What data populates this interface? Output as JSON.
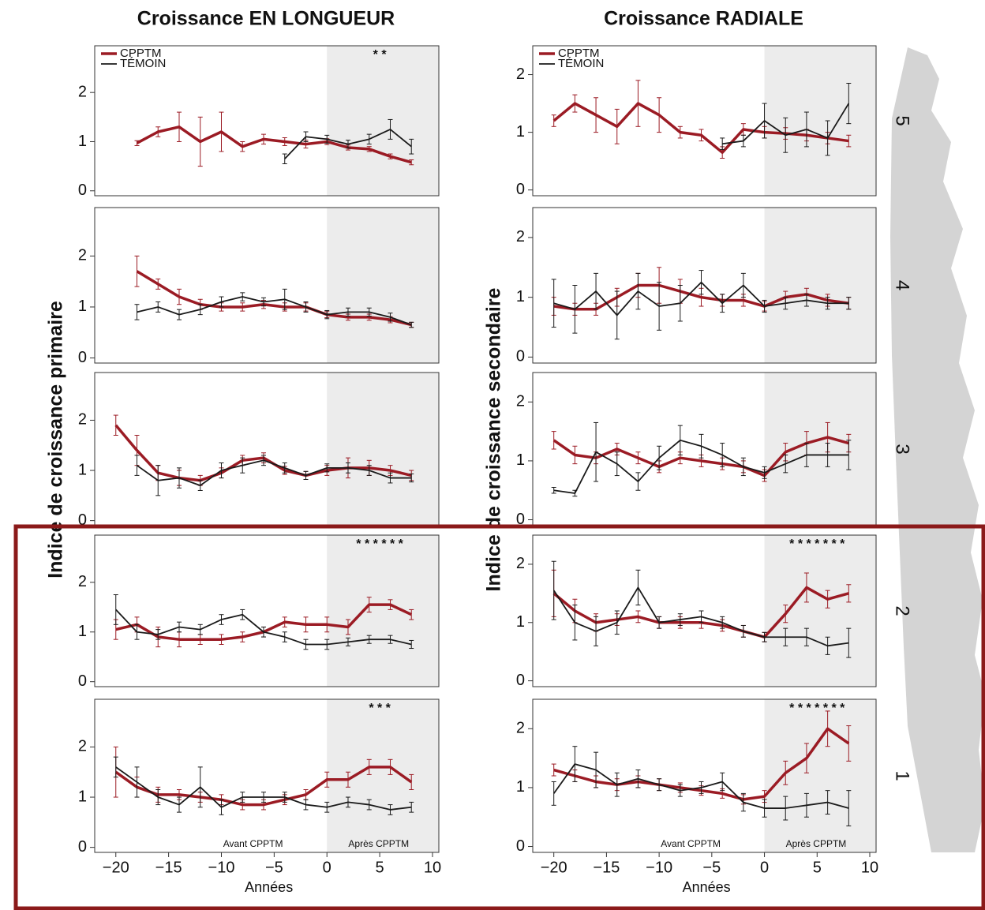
{
  "chart_data": [
    {
      "type": "line",
      "title": "Croissance EN LONGUEUR",
      "legend": true,
      "stars": "* *",
      "shade_from": 0,
      "x": [
        -20,
        -18,
        -16,
        -14,
        -12,
        -10,
        -8,
        -6,
        -4,
        -2,
        0,
        2,
        4,
        6,
        8
      ],
      "xlim": [
        -22,
        10.6
      ],
      "ylim": [
        -0.1,
        2.95
      ],
      "yticks": [
        0,
        1,
        2
      ],
      "series": [
        {
          "name": "CPPTM",
          "color": "#9b1b24",
          "values": [
            null,
            0.97,
            1.2,
            1.3,
            1.0,
            1.2,
            0.9,
            1.05,
            1.0,
            0.95,
            1.0,
            0.88,
            0.85,
            0.7,
            0.58
          ],
          "errors": [
            null,
            0.05,
            0.1,
            0.3,
            0.5,
            0.4,
            0.1,
            0.1,
            0.08,
            0.08,
            0.06,
            0.05,
            0.05,
            0.05,
            0.05
          ]
        },
        {
          "name": "TÉMOIN",
          "color": "#1a1a1a",
          "values": [
            null,
            null,
            null,
            null,
            null,
            null,
            null,
            null,
            0.65,
            1.1,
            1.05,
            0.95,
            1.05,
            1.25,
            0.9
          ],
          "errors": [
            null,
            null,
            null,
            null,
            null,
            null,
            null,
            null,
            0.1,
            0.1,
            0.08,
            0.08,
            0.1,
            0.2,
            0.15
          ]
        }
      ]
    },
    {
      "type": "line",
      "shade_from": 0,
      "x": [
        -20,
        -18,
        -16,
        -14,
        -12,
        -10,
        -8,
        -6,
        -4,
        -2,
        0,
        2,
        4,
        6,
        8
      ],
      "xlim": [
        -22,
        10.6
      ],
      "ylim": [
        -0.1,
        2.95
      ],
      "yticks": [
        0,
        1,
        2
      ],
      "series": [
        {
          "name": "CPPTM",
          "color": "#9b1b24",
          "values": [
            null,
            1.7,
            1.45,
            1.2,
            1.05,
            1.0,
            1.0,
            1.05,
            1.0,
            1.0,
            0.85,
            0.8,
            0.8,
            0.75,
            0.65
          ],
          "errors": [
            null,
            0.3,
            0.1,
            0.15,
            0.1,
            0.08,
            0.08,
            0.08,
            0.08,
            0.08,
            0.06,
            0.06,
            0.06,
            0.06,
            0.05
          ]
        },
        {
          "name": "TÉMOIN",
          "color": "#1a1a1a",
          "values": [
            null,
            0.9,
            1.0,
            0.85,
            0.95,
            1.1,
            1.2,
            1.1,
            1.15,
            1.0,
            0.85,
            0.9,
            0.9,
            0.8,
            0.65
          ],
          "errors": [
            null,
            0.15,
            0.1,
            0.1,
            0.1,
            0.1,
            0.08,
            0.08,
            0.2,
            0.1,
            0.08,
            0.08,
            0.08,
            0.08,
            0.05
          ]
        }
      ]
    },
    {
      "type": "line",
      "shade_from": 0,
      "ylabel": "Indice de croissance primaire",
      "x": [
        -20,
        -18,
        -16,
        -14,
        -12,
        -10,
        -8,
        -6,
        -4,
        -2,
        0,
        2,
        4,
        6,
        8
      ],
      "xlim": [
        -22,
        10.6
      ],
      "ylim": [
        -0.1,
        2.95
      ],
      "yticks": [
        0,
        1,
        2
      ],
      "series": [
        {
          "name": "CPPTM",
          "color": "#9b1b24",
          "values": [
            1.9,
            1.4,
            0.95,
            0.85,
            0.8,
            0.95,
            1.2,
            1.25,
            1.0,
            0.9,
            1.0,
            1.05,
            1.05,
            1.0,
            0.9
          ],
          "errors": [
            0.2,
            0.3,
            0.15,
            0.15,
            0.1,
            0.1,
            0.1,
            0.1,
            0.08,
            0.08,
            0.1,
            0.2,
            0.15,
            0.1,
            0.1
          ]
        },
        {
          "name": "TÉMOIN",
          "color": "#1a1a1a",
          "values": [
            null,
            1.1,
            0.8,
            0.85,
            0.7,
            1.0,
            1.1,
            1.2,
            1.05,
            0.9,
            1.05,
            1.05,
            1.0,
            0.85,
            0.85
          ],
          "errors": [
            null,
            0.2,
            0.3,
            0.2,
            0.1,
            0.15,
            0.15,
            0.1,
            0.1,
            0.08,
            0.08,
            0.1,
            0.1,
            0.1,
            0.08
          ]
        }
      ]
    },
    {
      "type": "line",
      "shade_from": 0,
      "stars": "* * * * * *",
      "x": [
        -20,
        -18,
        -16,
        -14,
        -12,
        -10,
        -8,
        -6,
        -4,
        -2,
        0,
        2,
        4,
        6,
        8
      ],
      "xlim": [
        -22,
        10.6
      ],
      "ylim": [
        -0.1,
        2.95
      ],
      "yticks": [
        0,
        1,
        2
      ],
      "series": [
        {
          "name": "CPPTM",
          "color": "#9b1b24",
          "values": [
            1.05,
            1.15,
            0.9,
            0.85,
            0.85,
            0.85,
            0.9,
            1.0,
            1.2,
            1.15,
            1.15,
            1.1,
            1.55,
            1.55,
            1.35
          ],
          "errors": [
            0.2,
            0.15,
            0.2,
            0.15,
            0.1,
            0.1,
            0.1,
            0.1,
            0.1,
            0.15,
            0.15,
            0.15,
            0.15,
            0.1,
            0.1
          ]
        },
        {
          "name": "TÉMOIN",
          "color": "#1a1a1a",
          "values": [
            1.45,
            1.0,
            0.95,
            1.1,
            1.05,
            1.25,
            1.35,
            1.0,
            0.9,
            0.75,
            0.75,
            0.8,
            0.85,
            0.85,
            0.75
          ],
          "errors": [
            0.3,
            0.15,
            0.1,
            0.1,
            0.1,
            0.1,
            0.1,
            0.1,
            0.1,
            0.1,
            0.1,
            0.08,
            0.08,
            0.08,
            0.08
          ]
        }
      ]
    },
    {
      "type": "line",
      "shade_from": 0,
      "stars": "*     * *",
      "xlabel": "Années",
      "annotations": [
        "Avant CPPTM",
        "Après CPPTM"
      ],
      "x": [
        -20,
        -18,
        -16,
        -14,
        -12,
        -10,
        -8,
        -6,
        -4,
        -2,
        0,
        2,
        4,
        6,
        8
      ],
      "xlim": [
        -22,
        10.6
      ],
      "ylim": [
        -0.1,
        2.95
      ],
      "yticks": [
        0,
        1,
        2
      ],
      "xticks": [
        {
          "value": -20,
          "label": "−20"
        },
        {
          "value": -15,
          "label": "−15"
        },
        {
          "value": -10,
          "label": "−10"
        },
        {
          "value": -5,
          "label": "−5"
        },
        0,
        5,
        10
      ],
      "series": [
        {
          "name": "CPPTM",
          "color": "#9b1b24",
          "values": [
            1.5,
            1.2,
            1.05,
            1.05,
            1.0,
            0.95,
            0.85,
            0.85,
            0.95,
            1.05,
            1.35,
            1.35,
            1.6,
            1.6,
            1.3
          ],
          "errors": [
            0.5,
            0.2,
            0.15,
            0.1,
            0.1,
            0.1,
            0.1,
            0.1,
            0.1,
            0.1,
            0.15,
            0.15,
            0.15,
            0.15,
            0.15
          ]
        },
        {
          "name": "TÉMOIN",
          "color": "#1a1a1a",
          "values": [
            1.6,
            1.3,
            1.0,
            0.85,
            1.2,
            0.8,
            1.0,
            1.0,
            1.0,
            0.85,
            0.8,
            0.9,
            0.85,
            0.75,
            0.8
          ],
          "errors": [
            0.2,
            0.3,
            0.15,
            0.15,
            0.4,
            0.15,
            0.1,
            0.1,
            0.1,
            0.1,
            0.1,
            0.1,
            0.1,
            0.1,
            0.1
          ]
        }
      ]
    },
    {
      "type": "line",
      "title": "Croissance RADIALE",
      "legend": true,
      "row_label": "5",
      "shade_from": 0,
      "x": [
        -20,
        -18,
        -16,
        -14,
        -12,
        -10,
        -8,
        -6,
        -4,
        -2,
        0,
        2,
        4,
        6,
        8
      ],
      "xlim": [
        -22,
        10.6
      ],
      "ylim": [
        -0.1,
        2.5
      ],
      "yticks": [
        0,
        1,
        2
      ],
      "series": [
        {
          "name": "CPPTM",
          "color": "#9b1b24",
          "values": [
            1.2,
            1.5,
            1.3,
            1.1,
            1.5,
            1.3,
            1.0,
            0.95,
            0.65,
            1.05,
            1.0,
            0.98,
            0.95,
            0.9,
            0.85
          ],
          "errors": [
            0.1,
            0.15,
            0.3,
            0.3,
            0.4,
            0.3,
            0.1,
            0.1,
            0.1,
            0.1,
            0.1,
            0.1,
            0.1,
            0.1,
            0.1
          ]
        },
        {
          "name": "TÉMOIN",
          "color": "#1a1a1a",
          "values": [
            null,
            null,
            null,
            null,
            null,
            null,
            null,
            null,
            0.8,
            0.85,
            1.2,
            0.95,
            1.05,
            0.9,
            1.5
          ],
          "errors": [
            null,
            null,
            null,
            null,
            null,
            null,
            null,
            null,
            0.1,
            0.1,
            0.3,
            0.3,
            0.3,
            0.3,
            0.35
          ]
        }
      ]
    },
    {
      "type": "line",
      "row_label": "4",
      "shade_from": 0,
      "x": [
        -20,
        -18,
        -16,
        -14,
        -12,
        -10,
        -8,
        -6,
        -4,
        -2,
        0,
        2,
        4,
        6,
        8
      ],
      "xlim": [
        -22,
        10.6
      ],
      "ylim": [
        -0.1,
        2.5
      ],
      "yticks": [
        0,
        1,
        2
      ],
      "series": [
        {
          "name": "CPPTM",
          "color": "#9b1b24",
          "values": [
            0.85,
            0.8,
            0.8,
            1.0,
            1.2,
            1.2,
            1.1,
            1.0,
            0.95,
            0.95,
            0.85,
            1.0,
            1.05,
            0.95,
            0.9
          ],
          "errors": [
            0.15,
            0.1,
            0.1,
            0.15,
            0.2,
            0.3,
            0.2,
            0.15,
            0.1,
            0.1,
            0.08,
            0.1,
            0.1,
            0.1,
            0.1
          ]
        },
        {
          "name": "TÉMOIN",
          "color": "#1a1a1a",
          "values": [
            0.9,
            0.8,
            1.1,
            0.7,
            1.1,
            0.85,
            0.9,
            1.25,
            0.9,
            1.2,
            0.85,
            0.9,
            0.95,
            0.9,
            0.9
          ],
          "errors": [
            0.4,
            0.4,
            0.3,
            0.4,
            0.3,
            0.4,
            0.3,
            0.2,
            0.15,
            0.2,
            0.1,
            0.1,
            0.1,
            0.1,
            0.1
          ]
        }
      ]
    },
    {
      "type": "line",
      "row_label": "3",
      "shade_from": 0,
      "ylabel": "Indice de croissance secondaire",
      "x": [
        -20,
        -18,
        -16,
        -14,
        -12,
        -10,
        -8,
        -6,
        -4,
        -2,
        0,
        2,
        4,
        6,
        8
      ],
      "xlim": [
        -22,
        10.6
      ],
      "ylim": [
        -0.1,
        2.5
      ],
      "yticks": [
        0,
        1,
        2
      ],
      "series": [
        {
          "name": "CPPTM",
          "color": "#9b1b24",
          "values": [
            1.35,
            1.1,
            1.05,
            1.2,
            1.05,
            0.9,
            1.05,
            1.0,
            0.95,
            0.9,
            0.75,
            1.15,
            1.3,
            1.4,
            1.3
          ],
          "errors": [
            0.15,
            0.15,
            0.1,
            0.1,
            0.1,
            0.1,
            0.1,
            0.1,
            0.1,
            0.1,
            0.1,
            0.15,
            0.2,
            0.25,
            0.15
          ]
        },
        {
          "name": "TÉMOIN",
          "color": "#1a1a1a",
          "values": [
            0.5,
            0.45,
            1.15,
            0.95,
            0.65,
            1.05,
            1.35,
            1.25,
            1.1,
            0.9,
            0.8,
            0.95,
            1.1,
            1.1,
            1.1
          ],
          "errors": [
            0.05,
            0.05,
            0.5,
            0.2,
            0.15,
            0.2,
            0.25,
            0.2,
            0.2,
            0.15,
            0.1,
            0.15,
            0.2,
            0.2,
            0.25
          ]
        }
      ]
    },
    {
      "type": "line",
      "row_label": "2",
      "shade_from": 0,
      "stars": "* * * * * * *",
      "x": [
        -20,
        -18,
        -16,
        -14,
        -12,
        -10,
        -8,
        -6,
        -4,
        -2,
        0,
        2,
        4,
        6,
        8
      ],
      "xlim": [
        -22,
        10.6
      ],
      "ylim": [
        -0.1,
        2.5
      ],
      "yticks": [
        0,
        1,
        2
      ],
      "series": [
        {
          "name": "CPPTM",
          "color": "#9b1b24",
          "values": [
            1.5,
            1.2,
            1.0,
            1.05,
            1.1,
            1.0,
            1.0,
            1.0,
            0.95,
            0.85,
            0.75,
            1.15,
            1.6,
            1.4,
            1.5
          ],
          "errors": [
            0.4,
            0.2,
            0.15,
            0.1,
            0.1,
            0.1,
            0.1,
            0.1,
            0.1,
            0.1,
            0.08,
            0.15,
            0.25,
            0.15,
            0.15
          ]
        },
        {
          "name": "TÉMOIN",
          "color": "#1a1a1a",
          "values": [
            1.55,
            1.0,
            0.85,
            1.0,
            1.6,
            1.0,
            1.05,
            1.1,
            1.0,
            0.85,
            0.75,
            0.75,
            0.75,
            0.6,
            0.65
          ],
          "errors": [
            0.5,
            0.3,
            0.25,
            0.2,
            0.3,
            0.1,
            0.1,
            0.1,
            0.1,
            0.1,
            0.08,
            0.15,
            0.15,
            0.15,
            0.25
          ]
        }
      ]
    },
    {
      "type": "line",
      "row_label": "1",
      "shade_from": 0,
      "stars": "* * * * * * *",
      "xlabel": "Années",
      "annotations": [
        "Avant CPPTM",
        "Après CPPTM"
      ],
      "x": [
        -20,
        -18,
        -16,
        -14,
        -12,
        -10,
        -8,
        -6,
        -4,
        -2,
        0,
        2,
        4,
        6,
        8
      ],
      "xlim": [
        -22,
        10.6
      ],
      "ylim": [
        -0.1,
        2.5
      ],
      "yticks": [
        0,
        1,
        2
      ],
      "xticks": [
        {
          "value": -20,
          "label": "−20"
        },
        {
          "value": -15,
          "label": "−15"
        },
        {
          "value": -10,
          "label": "−10"
        },
        {
          "value": -5,
          "label": "−5"
        },
        0,
        5,
        10
      ],
      "series": [
        {
          "name": "CPPTM",
          "color": "#9b1b24",
          "values": [
            1.3,
            1.2,
            1.1,
            1.05,
            1.1,
            1.05,
            1.0,
            0.95,
            0.9,
            0.8,
            0.85,
            1.25,
            1.5,
            2.0,
            1.75
          ],
          "errors": [
            0.1,
            0.1,
            0.1,
            0.1,
            0.1,
            0.1,
            0.08,
            0.08,
            0.08,
            0.08,
            0.1,
            0.2,
            0.25,
            0.3,
            0.3
          ]
        },
        {
          "name": "TÉMOIN",
          "color": "#1a1a1a",
          "values": [
            0.9,
            1.4,
            1.3,
            1.05,
            1.15,
            1.05,
            0.95,
            1.0,
            1.1,
            0.75,
            0.65,
            0.65,
            0.7,
            0.75,
            0.65
          ],
          "errors": [
            0.2,
            0.3,
            0.3,
            0.2,
            0.15,
            0.1,
            0.1,
            0.1,
            0.15,
            0.15,
            0.15,
            0.2,
            0.2,
            0.2,
            0.3
          ]
        }
      ]
    }
  ]
}
